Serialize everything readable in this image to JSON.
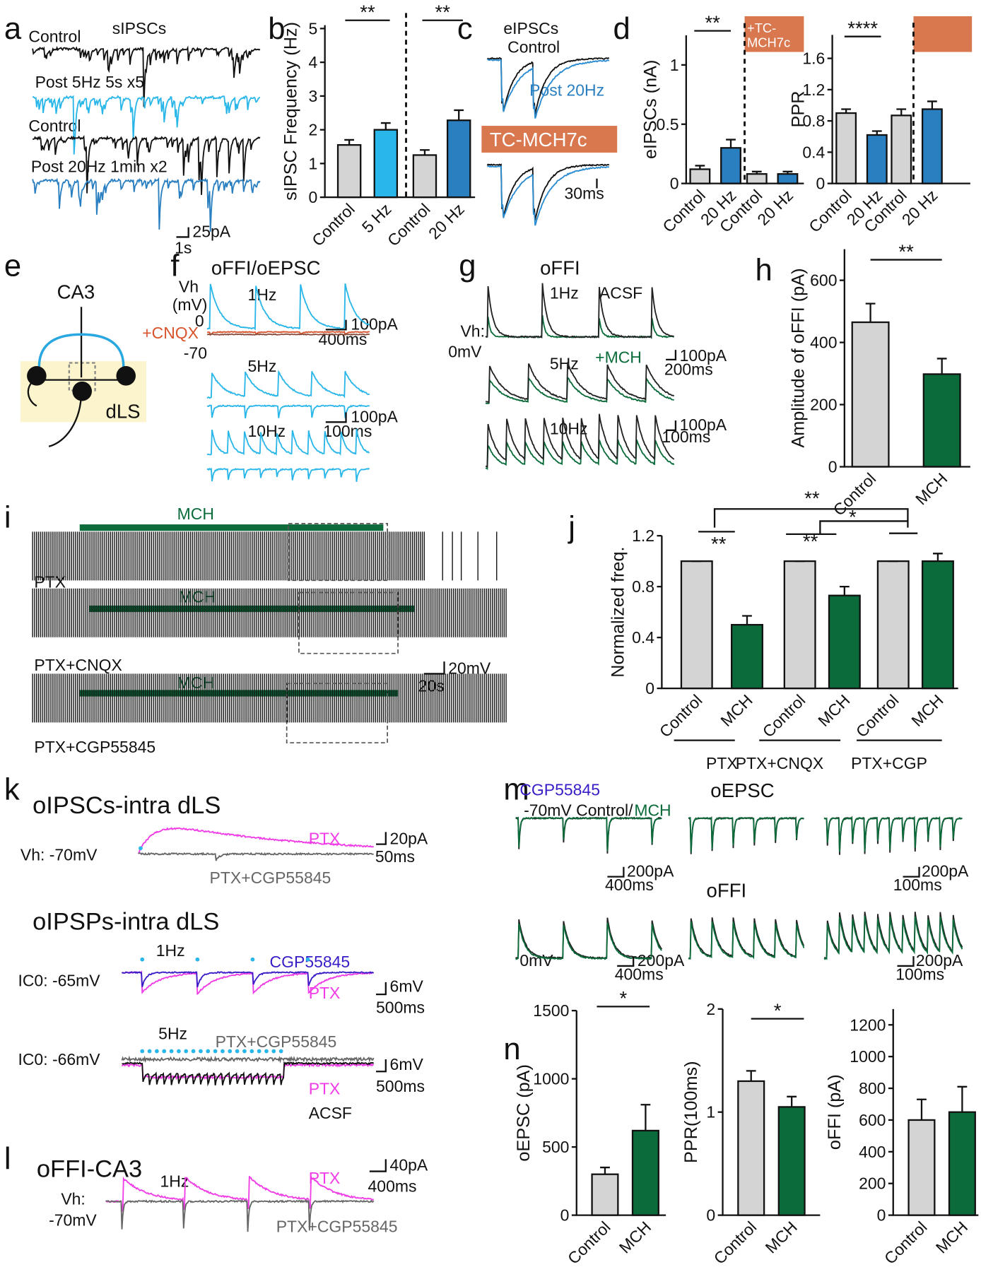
{
  "panel_letters": [
    "a",
    "b",
    "c",
    "d",
    "e",
    "f",
    "g",
    "h",
    "i",
    "j",
    "k",
    "l",
    "m",
    "n"
  ],
  "texts": {
    "a": [
      "sIPSCs",
      "Control",
      "Post 5Hz 5s x5",
      "Control",
      "Post 20Hz 1min x2",
      "25pA",
      "1s"
    ],
    "c": [
      "eIPSCs",
      "Control",
      "Post 20Hz",
      "TC-MCH7c",
      "30ms"
    ],
    "d": [
      "+TC-",
      "MCH7c"
    ],
    "e": [
      "CA3",
      "dLS"
    ],
    "f": [
      "oFFI/oEPSC",
      "Vh",
      "(mV)",
      "0",
      "+CNQX",
      "-70",
      "1Hz",
      "100pA",
      "400ms",
      "5Hz",
      "100pA",
      "100ms",
      "10Hz"
    ],
    "g": [
      "oFFI",
      "1Hz",
      "ACSF",
      "Vh:",
      "0mV",
      "5Hz",
      "+MCH",
      "100pA",
      "200ms",
      "10Hz",
      "100pA",
      "100ms"
    ],
    "i": [
      "MCH",
      "PTX",
      "MCH",
      "PTX+CNQX",
      "20mV",
      "20s",
      "MCH",
      "PTX+CGP55845"
    ],
    "k": [
      "oIPSCs-intra dLS",
      "Vh: -70mV",
      "PTX",
      "20pA",
      "50ms",
      "PTX+CGP55845",
      "oIPSPs-intra dLS",
      "1Hz",
      "CGP55845",
      "IC0: -65mV",
      "PTX",
      "6mV",
      "500ms",
      "5Hz",
      "PTX+CGP55845",
      "IC0: -66mV",
      "6mV",
      "500ms",
      "PTX",
      "ACSF"
    ],
    "l": [
      "oFFI-CA3",
      "1Hz",
      "Vh:",
      "-70mV",
      "PTX",
      "40pA",
      "400ms",
      "PTX+CGP55845"
    ],
    "m": [
      "CGP55845",
      "oEPSC",
      "-70mV Control/",
      "MCH",
      "200pA",
      "400ms",
      "200pA",
      "100ms",
      "oFFI",
      "0mV",
      "200pA",
      "400ms",
      "200pA",
      "100ms"
    ]
  },
  "chart_data": [
    {
      "type": "bar",
      "ylabel": "sIPSC Frequency (Hz)",
      "categories": [
        "Control",
        "5 Hz",
        "Control",
        "20 Hz"
      ],
      "values": [
        1.55,
        2.0,
        1.25,
        2.28
      ],
      "errors": [
        0.15,
        0.2,
        0.15,
        0.3
      ],
      "colors": [
        "#d4d4d4",
        "#29b6e8",
        "#d4d4d4",
        "#2a7fc1"
      ],
      "ylim": [
        0,
        5.1
      ],
      "yticks": [
        0,
        1,
        2,
        3,
        4,
        5
      ],
      "annotations": [
        "**",
        "**"
      ]
    },
    {
      "type": "bar",
      "ylabel": "eIPSCs (nA)",
      "categories": [
        "Control",
        "20 Hz",
        "Control",
        "20 Hz"
      ],
      "values": [
        0.12,
        0.3,
        0.08,
        0.08
      ],
      "errors": [
        0.03,
        0.07,
        0.02,
        0.02
      ],
      "colors": [
        "#d4d4d4",
        "#2a7fc1",
        "#d4d4d4",
        "#2a7fc1"
      ],
      "ylim": [
        0,
        1.25
      ],
      "yticks": [
        0,
        0.5,
        1
      ],
      "annotations": [
        "**"
      ]
    },
    {
      "type": "bar",
      "ylabel": "PPR",
      "categories": [
        "Control",
        "20 Hz",
        "Control",
        "20 Hz"
      ],
      "values": [
        0.9,
        0.62,
        0.87,
        0.95
      ],
      "errors": [
        0.05,
        0.05,
        0.08,
        0.1
      ],
      "colors": [
        "#d4d4d4",
        "#2a7fc1",
        "#d4d4d4",
        "#2a7fc1"
      ],
      "ylim": [
        0,
        1.9
      ],
      "yticks": [
        0,
        0.4,
        0.8,
        1.2,
        1.6
      ],
      "annotations": [
        "****"
      ]
    },
    {
      "type": "bar",
      "ylabel": "Amplitude of oFFI (pA)",
      "categories": [
        "Control",
        "MCH"
      ],
      "values": [
        465,
        298
      ],
      "errors": [
        60,
        50
      ],
      "colors": [
        "#d4d4d4",
        "#0b6b3a"
      ],
      "ylim": [
        0,
        700
      ],
      "yticks": [
        0,
        200,
        400,
        600
      ],
      "annotations": [
        "**"
      ]
    },
    {
      "type": "bar",
      "ylabel": "Normalized freq.",
      "categories": [
        "Control",
        "MCH",
        "Control",
        "MCH",
        "Control",
        "MCH"
      ],
      "values": [
        1,
        0.5,
        1,
        0.73,
        1,
        1.0
      ],
      "errors": [
        0,
        0.07,
        0,
        0.07,
        0,
        0.06
      ],
      "colors": [
        "#d4d4d4",
        "#0b6b3a",
        "#d4d4d4",
        "#0b6b3a",
        "#d4d4d4",
        "#0b6b3a"
      ],
      "ylim": [
        0,
        1.2
      ],
      "yticks": [
        0,
        0.4,
        0.8,
        1.2
      ],
      "groups": [
        "PTX",
        "PTX+CNQX",
        "PTX+CGP"
      ],
      "annotations": [
        "**",
        "**",
        "*",
        "**"
      ]
    },
    {
      "type": "bar",
      "ylabel": "oEPSC (pA)",
      "categories": [
        "Control",
        "MCH"
      ],
      "values": [
        300,
        620
      ],
      "errors": [
        50,
        190
      ],
      "colors": [
        "#d4d4d4",
        "#0b6b3a"
      ],
      "ylim": [
        0,
        1500
      ],
      "yticks": [
        0,
        500,
        1000,
        1500
      ],
      "annotations": [
        "*"
      ]
    },
    {
      "type": "bar",
      "ylabel": "PPR(100ms)",
      "categories": [
        "Control",
        "MCH"
      ],
      "values": [
        1.3,
        1.05
      ],
      "errors": [
        0.1,
        0.1
      ],
      "colors": [
        "#d4d4d4",
        "#0b6b3a"
      ],
      "ylim": [
        0,
        2
      ],
      "yticks": [
        0,
        1,
        2
      ],
      "annotations": [
        "*"
      ]
    },
    {
      "type": "bar",
      "ylabel": "oFFI (pA)",
      "categories": [
        "Control",
        "MCH"
      ],
      "values": [
        600,
        650
      ],
      "errors": [
        130,
        160
      ],
      "colors": [
        "#d4d4d4",
        "#0b6b3a"
      ],
      "ylim": [
        0,
        1300
      ],
      "yticks": [
        0,
        200,
        400,
        600,
        800,
        1000,
        1200
      ],
      "annotations": []
    }
  ]
}
